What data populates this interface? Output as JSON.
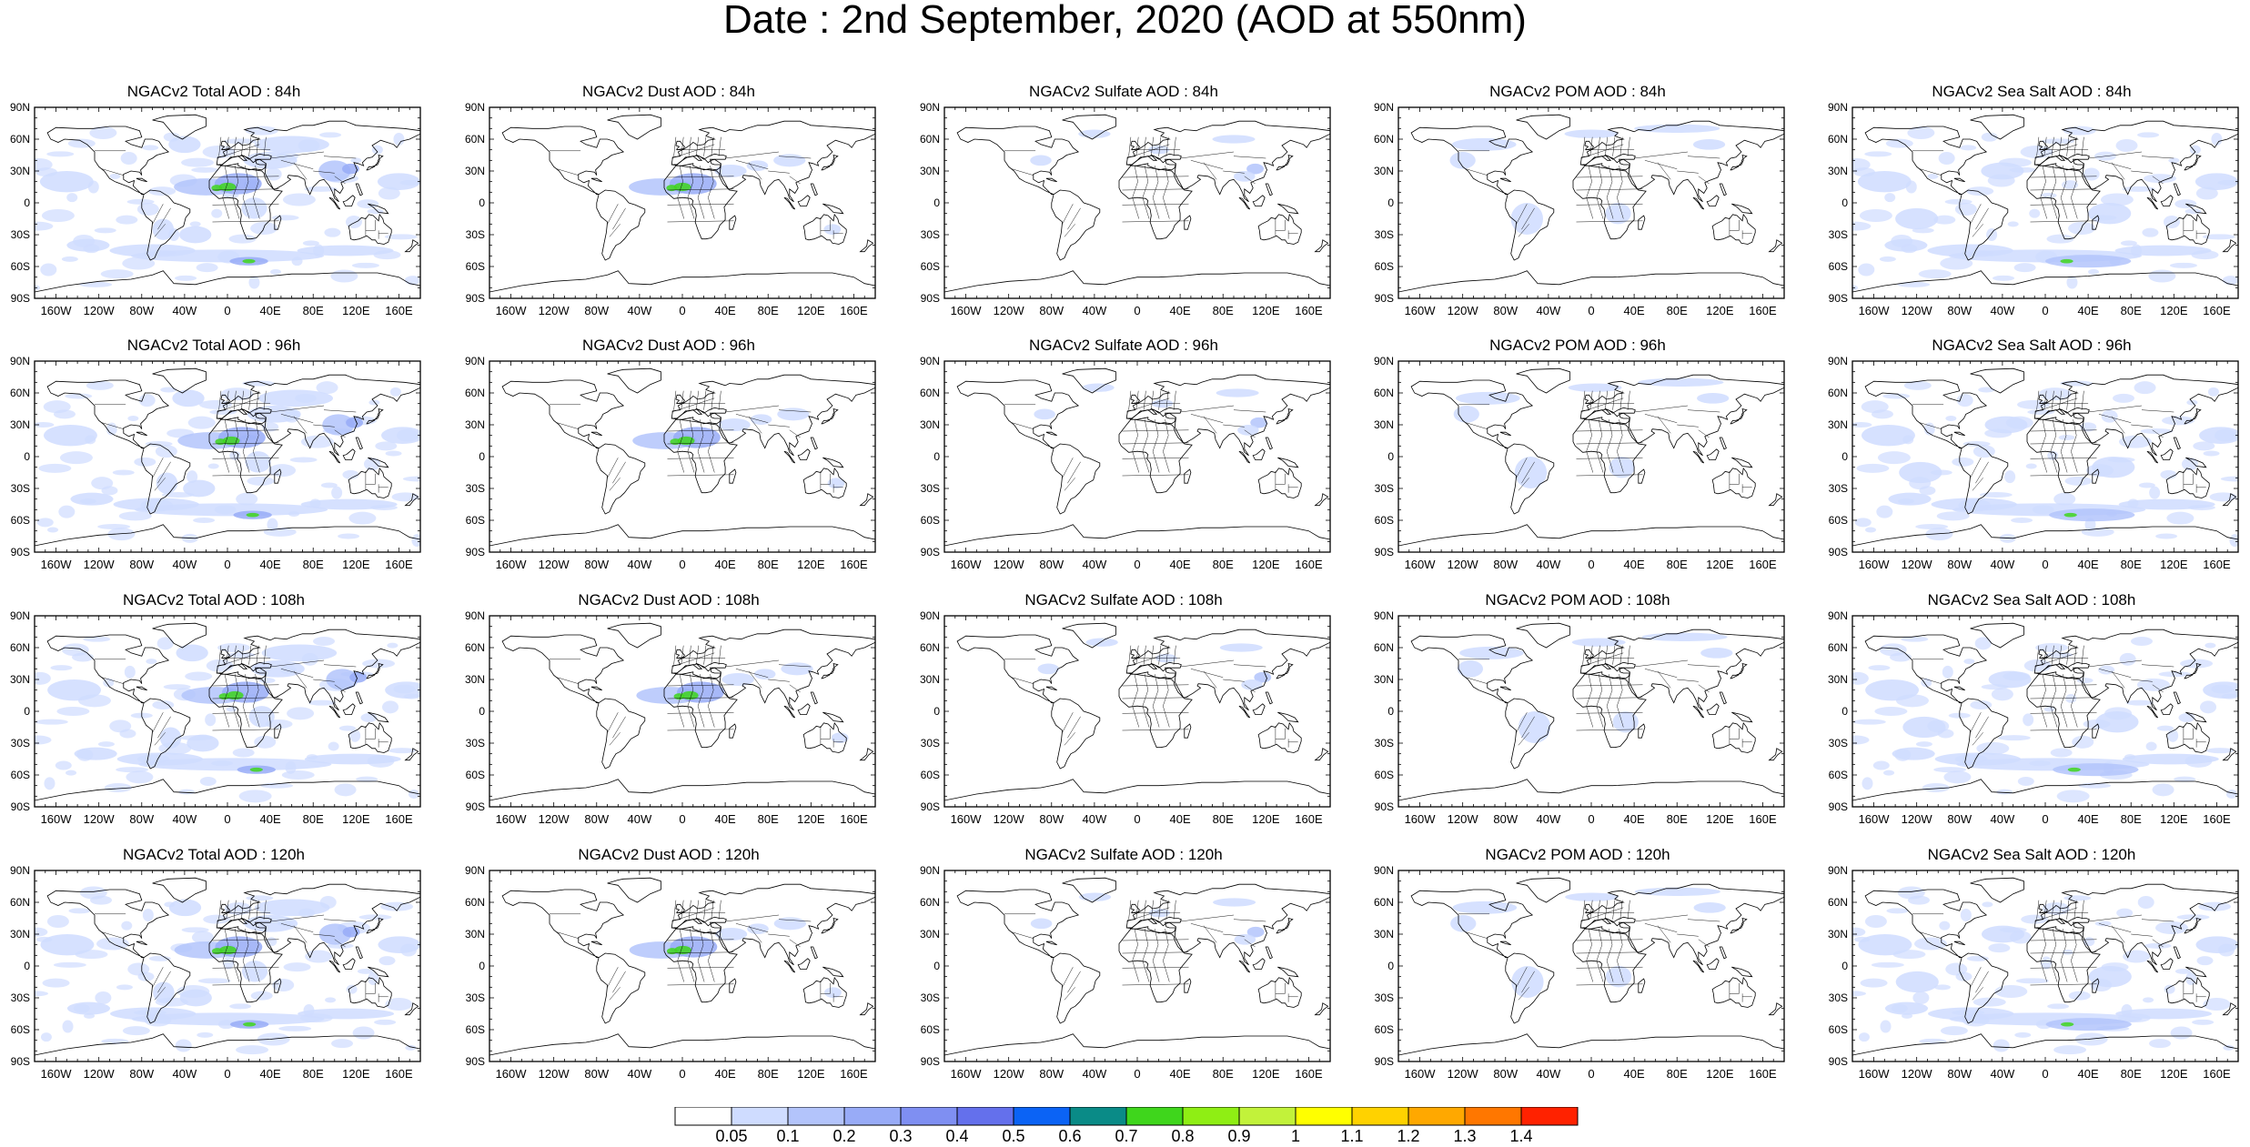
{
  "title": "Date : 2nd September, 2020 (AOD at 550nm)",
  "panels": [
    [
      "NGACv2 Total AOD : 84h",
      "NGACv2 Dust AOD : 84h",
      "NGACv2 Sulfate AOD : 84h",
      "NGACv2 POM AOD : 84h",
      "NGACv2 Sea Salt AOD : 84h"
    ],
    [
      "NGACv2 Total AOD : 96h",
      "NGACv2 Dust AOD : 96h",
      "NGACv2 Sulfate AOD : 96h",
      "NGACv2 POM AOD : 96h",
      "NGACv2 Sea Salt AOD : 96h"
    ],
    [
      "NGACv2 Total AOD : 108h",
      "NGACv2 Dust AOD : 108h",
      "NGACv2 Sulfate AOD : 108h",
      "NGACv2 POM AOD : 108h",
      "NGACv2 Sea Salt AOD : 108h"
    ],
    [
      "NGACv2 Total AOD : 120h",
      "NGACv2 Dust AOD : 120h",
      "NGACv2 Sulfate AOD : 120h",
      "NGACv2 POM AOD : 120h",
      "NGACv2 Sea Salt  AOD : 120h"
    ]
  ],
  "lat_ticks": [
    "90N",
    "60N",
    "30N",
    "0",
    "30S",
    "60S",
    "90S"
  ],
  "lon_ticks": [
    "160W",
    "120W",
    "80W",
    "40W",
    "0",
    "40E",
    "80E",
    "120E",
    "160E"
  ],
  "colorbar": {
    "colors": [
      "#ffffff",
      "#cfdcff",
      "#b3c4fb",
      "#98abf7",
      "#7f8ff2",
      "#6470ec",
      "#0b63f5",
      "#0a8b87",
      "#3fd61c",
      "#8fee14",
      "#c2f23a",
      "#ffff00",
      "#ffd200",
      "#ffa800",
      "#ff7700",
      "#ff2200"
    ],
    "labels": [
      "0.05",
      "0.1",
      "0.2",
      "0.3",
      "0.4",
      "0.5",
      "0.6",
      "0.7",
      "0.8",
      "0.9",
      "1",
      "1.1",
      "1.2",
      "1.3",
      "1.4"
    ]
  }
}
